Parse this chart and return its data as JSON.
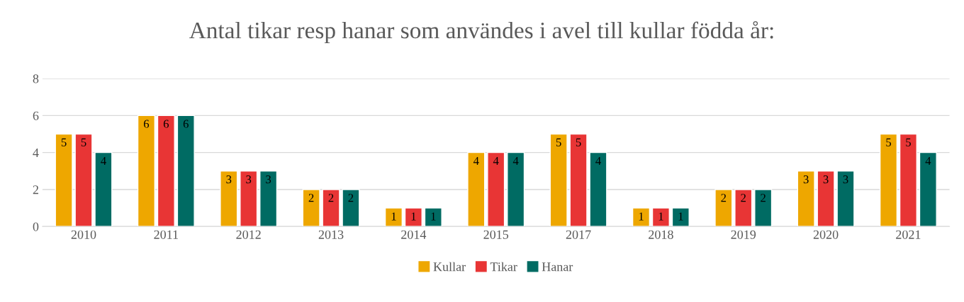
{
  "chart_data": {
    "type": "bar",
    "title": "Antal tikar resp hanar som användes i avel till kullar födda år:",
    "categories": [
      "2010",
      "2011",
      "2012",
      "2013",
      "2014",
      "2015",
      "2017",
      "2018",
      "2019",
      "2020",
      "2021"
    ],
    "series": [
      {
        "name": "Kullar",
        "color": "#eea700",
        "values": [
          5,
          6,
          3,
          2,
          1,
          4,
          5,
          1,
          2,
          3,
          5
        ]
      },
      {
        "name": "Tikar",
        "color": "#e83535",
        "values": [
          5,
          6,
          3,
          2,
          1,
          4,
          5,
          1,
          2,
          3,
          5
        ]
      },
      {
        "name": "Hanar",
        "color": "#006b63",
        "values": [
          4,
          6,
          3,
          2,
          1,
          4,
          4,
          1,
          2,
          3,
          4
        ]
      }
    ],
    "ylim": [
      0,
      8
    ],
    "yticks": [
      0,
      2,
      4,
      6,
      8
    ],
    "grid": "y",
    "legend": "bottom",
    "data_labels": true
  }
}
